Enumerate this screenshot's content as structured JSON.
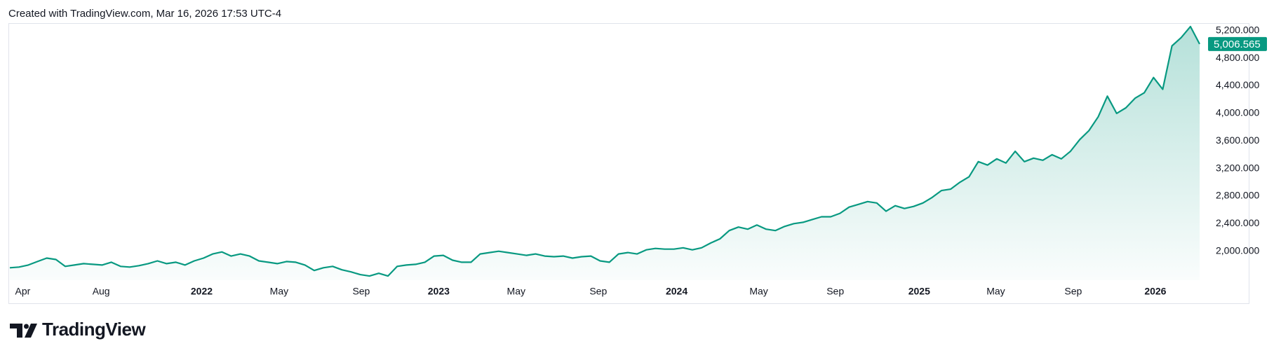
{
  "header": {
    "text": "Created with TradingView.com, Mar 16, 2026 17:53 UTC-4"
  },
  "chart_data": {
    "type": "area",
    "color": "#089981",
    "values": [
      1760,
      1770,
      1800,
      1850,
      1900,
      1880,
      1780,
      1800,
      1820,
      1810,
      1800,
      1840,
      1780,
      1770,
      1790,
      1820,
      1860,
      1820,
      1840,
      1800,
      1860,
      1900,
      1960,
      1990,
      1930,
      1960,
      1930,
      1860,
      1840,
      1820,
      1850,
      1840,
      1800,
      1720,
      1760,
      1780,
      1730,
      1700,
      1660,
      1640,
      1680,
      1640,
      1780,
      1800,
      1810,
      1840,
      1930,
      1940,
      1870,
      1840,
      1840,
      1960,
      1980,
      2000,
      1980,
      1960,
      1940,
      1960,
      1930,
      1920,
      1930,
      1900,
      1920,
      1930,
      1860,
      1840,
      1960,
      1980,
      1960,
      2020,
      2040,
      2030,
      2030,
      2050,
      2020,
      2050,
      2120,
      2180,
      2300,
      2350,
      2320,
      2380,
      2320,
      2300,
      2360,
      2400,
      2420,
      2460,
      2500,
      2500,
      2550,
      2640,
      2680,
      2720,
      2700,
      2580,
      2660,
      2620,
      2650,
      2700,
      2780,
      2880,
      2900,
      3000,
      3080,
      3300,
      3250,
      3340,
      3280,
      3450,
      3300,
      3350,
      3320,
      3400,
      3340,
      3450,
      3620,
      3750,
      3950,
      4250,
      4000,
      4080,
      4220,
      4300,
      4520,
      4350,
      4980,
      5100,
      5260,
      5006.565
    ],
    "price_label": "5,006.565",
    "xlim": [
      0,
      129
    ],
    "ylim": [
      1580,
      5310
    ],
    "yticks": [
      {
        "value": 2000,
        "label": "2,000.000"
      },
      {
        "value": 2400,
        "label": "2,400.000"
      },
      {
        "value": 2800,
        "label": "2,800.000"
      },
      {
        "value": 3200,
        "label": "3,200.000"
      },
      {
        "value": 3600,
        "label": "3,600.000"
      },
      {
        "value": 4000,
        "label": "4,000.000"
      },
      {
        "value": 4400,
        "label": "4,400.000"
      },
      {
        "value": 4800,
        "label": "4,800.000"
      },
      {
        "value": 5200,
        "label": "5,200.000"
      }
    ],
    "xticks": [
      {
        "value": 1.4,
        "label": "Apr"
      },
      {
        "value": 9.9,
        "label": "Aug"
      },
      {
        "value": 20.8,
        "label": "2022"
      },
      {
        "value": 29.2,
        "label": "May"
      },
      {
        "value": 38.1,
        "label": "Sep"
      },
      {
        "value": 46.5,
        "label": "2023"
      },
      {
        "value": 54.9,
        "label": "May"
      },
      {
        "value": 63.8,
        "label": "Sep"
      },
      {
        "value": 72.3,
        "label": "2024"
      },
      {
        "value": 81.2,
        "label": "May"
      },
      {
        "value": 89.5,
        "label": "Sep"
      },
      {
        "value": 98.6,
        "label": "2025"
      },
      {
        "value": 106.9,
        "label": "May"
      },
      {
        "value": 115.3,
        "label": "Sep"
      },
      {
        "value": 124.2,
        "label": "2026"
      }
    ]
  },
  "footer": {
    "logo": "TradingView"
  }
}
